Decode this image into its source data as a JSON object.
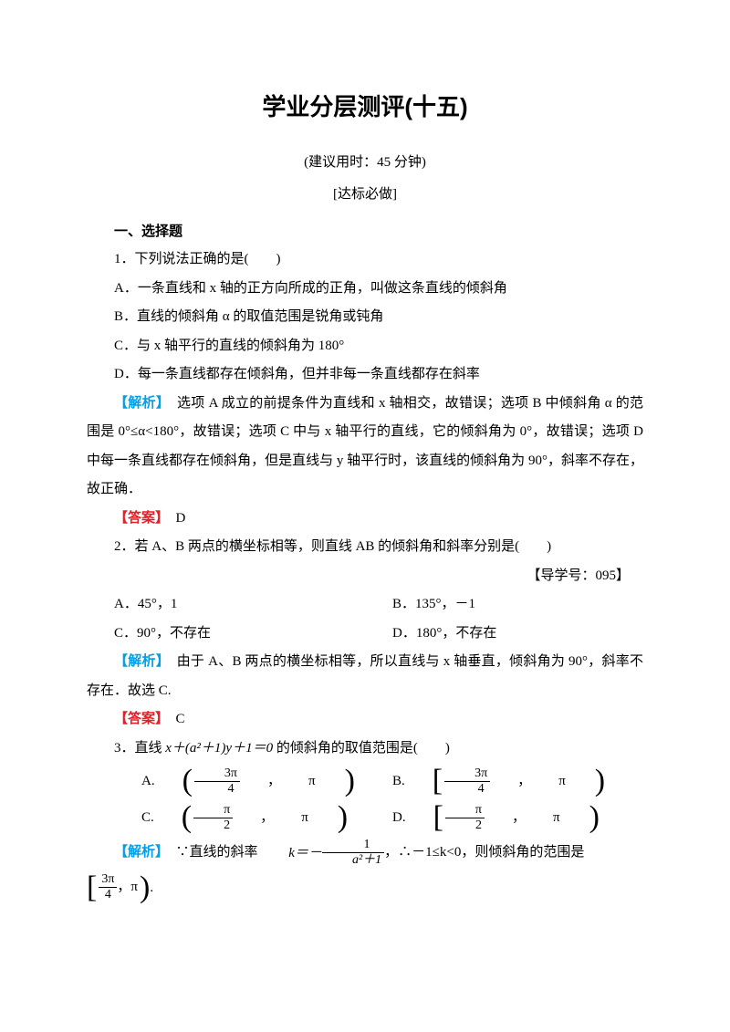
{
  "title": "学业分层测评(十五)",
  "subtitle": "(建议用时：45 分钟)",
  "section_label": "[达标必做]",
  "h1": "一、选择题",
  "q1": {
    "stem": "1．下列说法正确的是(　　)",
    "A": "A．一条直线和 x 轴的正方向所成的正角，叫做这条直线的倾斜角",
    "B": "B．直线的倾斜角 α 的取值范围是锐角或钝角",
    "C": "C．与 x 轴平行的直线的倾斜角为 180°",
    "D": "D．每一条直线都存在倾斜角，但并非每一条直线都存在斜率",
    "analysis_label": "【解析】",
    "analysis": "　选项 A 成立的前提条件为直线和 x 轴相交，故错误；选项 B 中倾斜角 α 的范围是 0°≤α<180°，故错误；选项 C 中与 x 轴平行的直线，它的倾斜角为 0°，故错误；选项 D 中每一条直线都存在倾斜角，但是直线与 y 轴平行时，该直线的倾斜角为 90°，斜率不存在，故正确．",
    "answer_label": "【答案】",
    "answer": "　D"
  },
  "q2": {
    "stem": "2．若 A、B 两点的横坐标相等，则直线 AB 的倾斜角和斜率分别是(　　)",
    "ref": "【导学号：095】",
    "A": "A．45°，1",
    "B": "B．135°，－1",
    "C": "C．90°，不存在",
    "D": "D．180°，不存在",
    "analysis_label": "【解析】",
    "analysis": "　由于 A、B 两点的横坐标相等，所以直线与 x 轴垂直，倾斜角为 90°，斜率不存在．故选 C.",
    "answer_label": "【答案】",
    "answer": "　C"
  },
  "q3": {
    "stem_pre": "3．直线 ",
    "stem_math": "x＋(a²＋1)y＋1＝0",
    "stem_post": " 的倾斜角的取值范围是(　　)",
    "A_pre": "A.",
    "B_pre": "B.",
    "C_pre": "C.",
    "D_pre": "D.",
    "frac_3pi4_num": "3π",
    "frac_3pi4_den": "4",
    "frac_pi2_num": "π",
    "frac_pi2_den": "2",
    "pi": "π",
    "comma": "，",
    "analysis_label": "【解析】",
    "analysis_pre": "　∵直线的斜率 ",
    "k_eq": "k＝－",
    "frac_1": "1",
    "frac_a21": "a²＋1",
    "analysis_mid": "，∴－1≤k<0，则倾斜角的范围是",
    "period": "."
  }
}
